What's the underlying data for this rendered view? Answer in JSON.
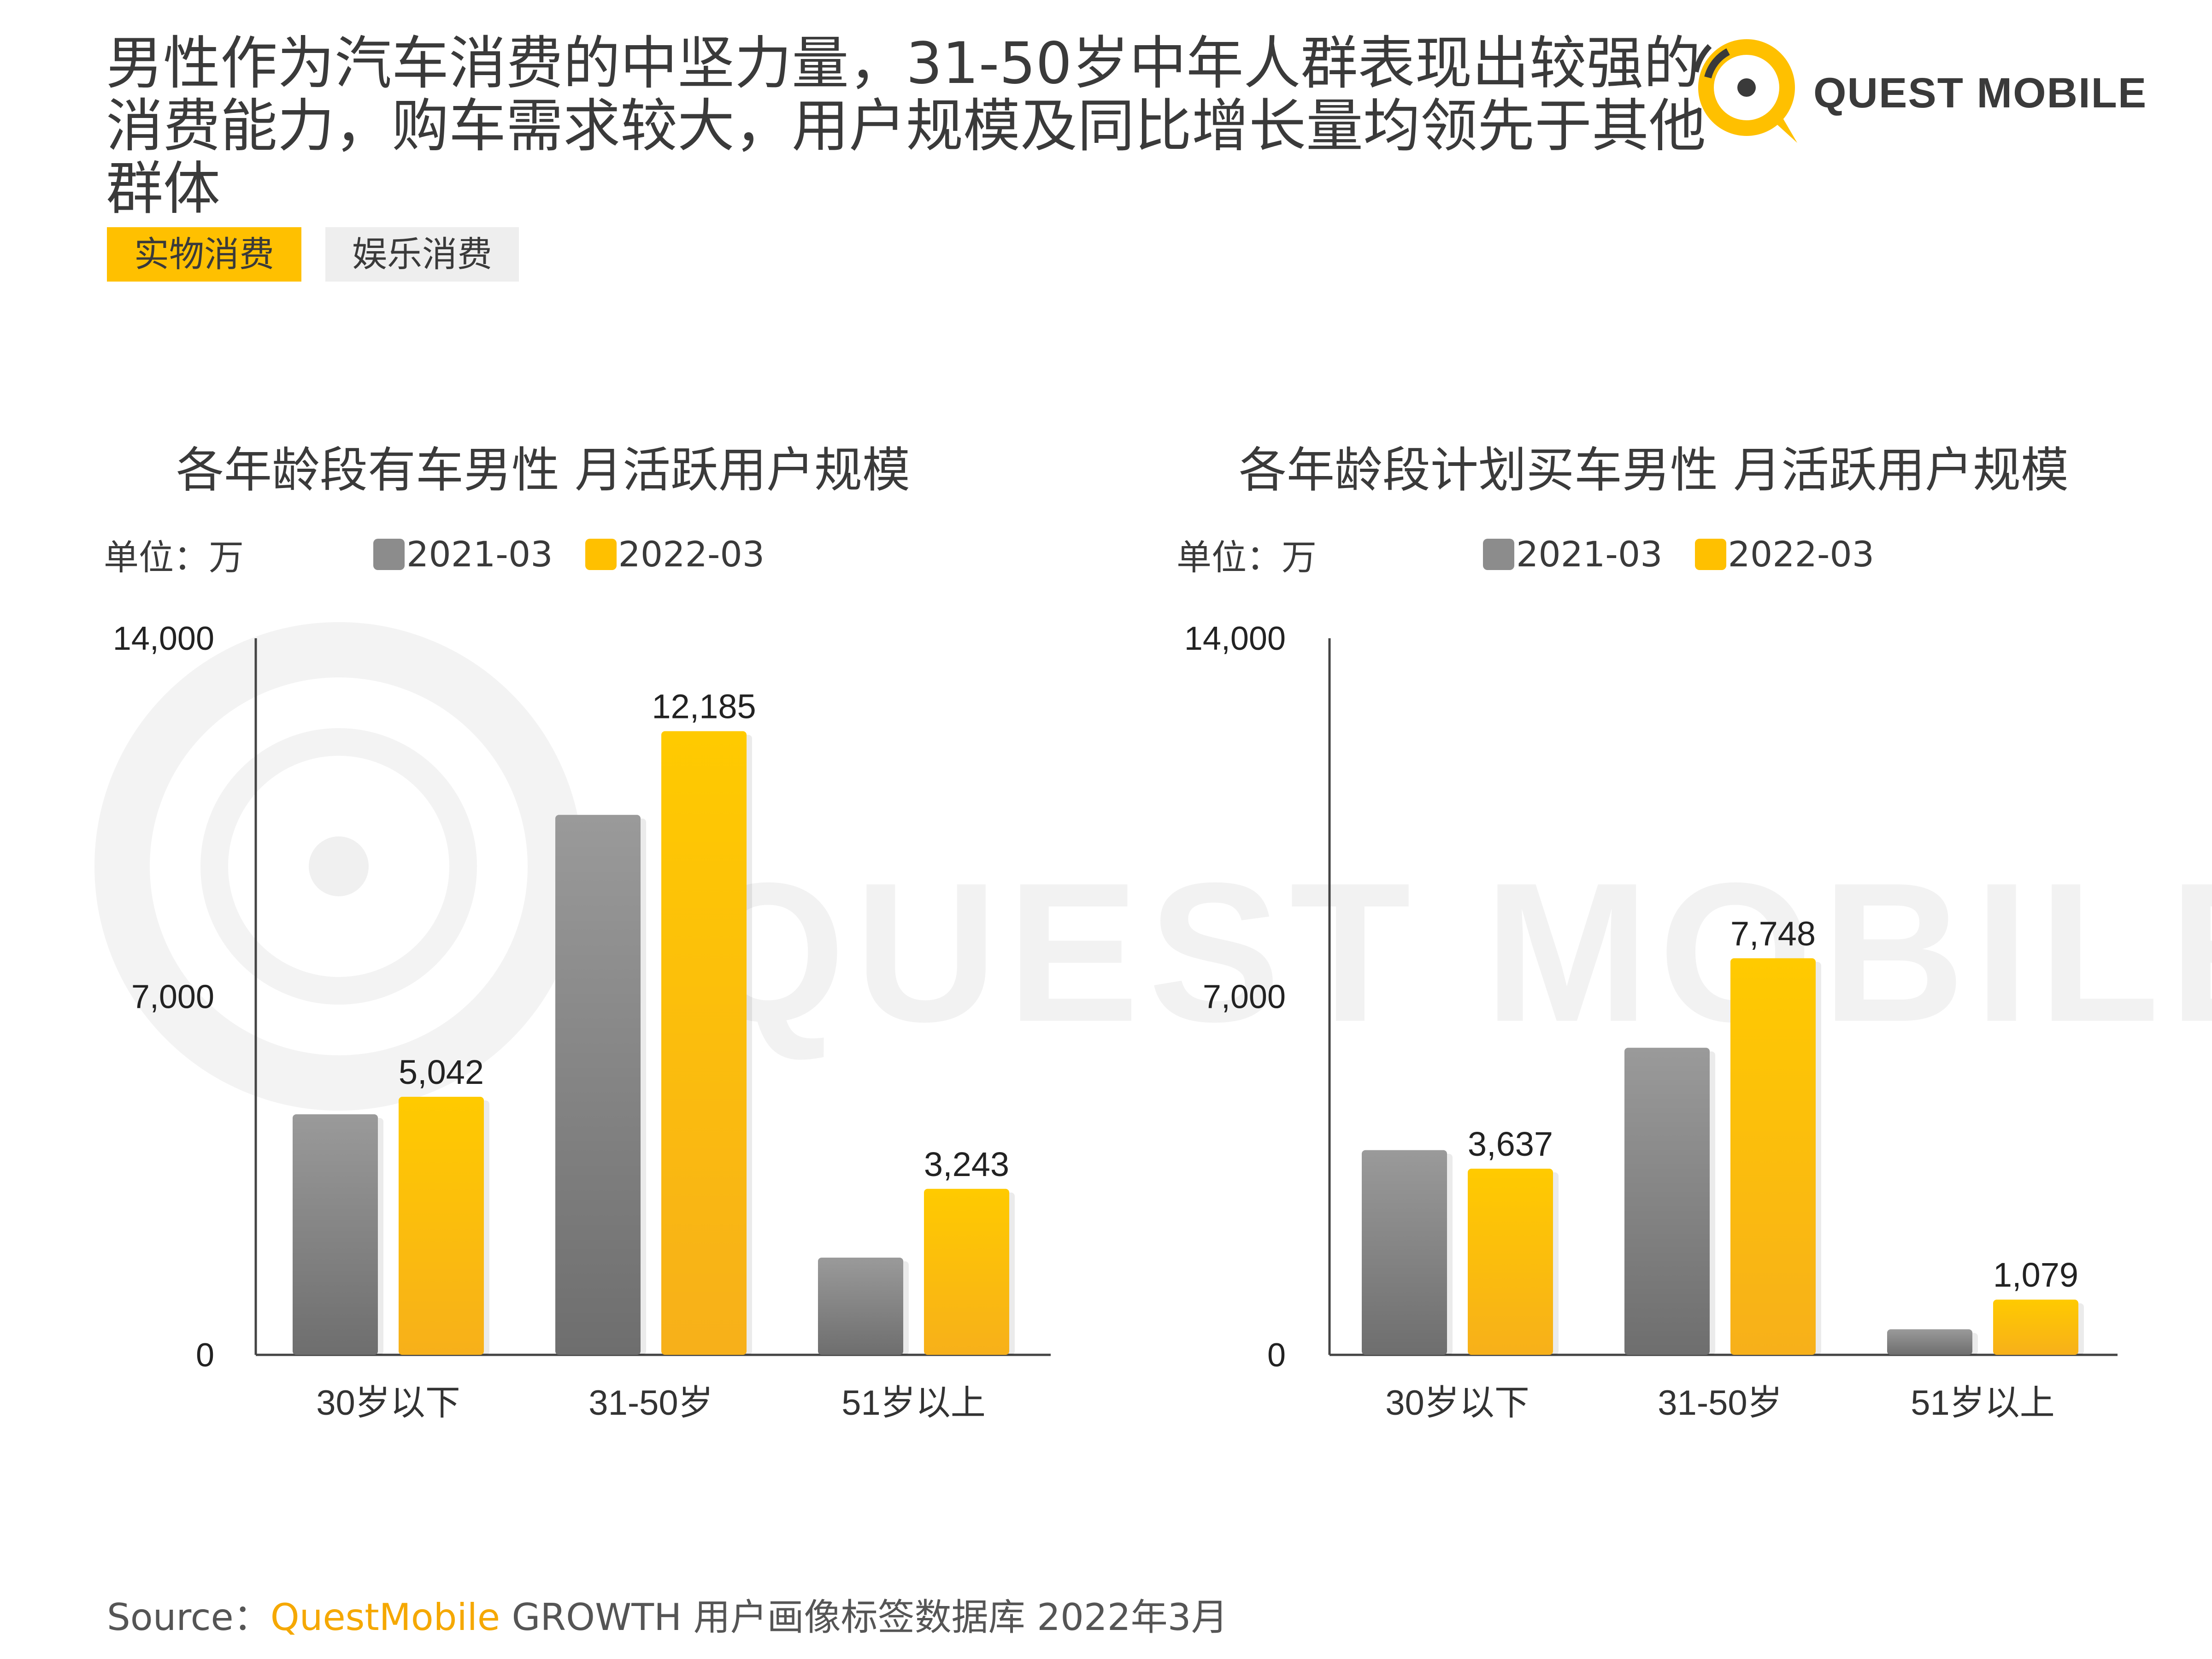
{
  "headline": "男性作为汽车消费的中坚力量，31-50岁中年人群表现出较强的消费能力，购车需求较大，用户规模及同比增长量均领先于其他群体",
  "logo": {
    "text": "QUEST MOBILE",
    "icon": "quest-mobile-logo-icon"
  },
  "tags": [
    {
      "label": "实物消费",
      "active": true
    },
    {
      "label": "娱乐消费",
      "active": false
    }
  ],
  "watermark": "QUEST MOBILE",
  "colors": {
    "accent": "#ffc000",
    "grey": "#8c8c8c",
    "tag_inactive": "#eeeeee"
  },
  "footer": {
    "prefix": "Source：",
    "brand": "QuestMobile",
    "rest": " GROWTH 用户画像标签数据库 2022年3月"
  },
  "chart_data": [
    {
      "type": "bar",
      "title": "各年龄段有车男性 月活跃用户规模",
      "unit": "单位：万",
      "categories": [
        "30岁以下",
        "31-50岁",
        "51岁以上"
      ],
      "series": [
        {
          "name": "2021-03",
          "values": [
            4700,
            10550,
            1900
          ],
          "color": "#8c8c8c",
          "show_labels": false
        },
        {
          "name": "2022-03",
          "values": [
            5042,
            12185,
            3243
          ],
          "color": "#ffc000",
          "show_labels": true,
          "labels": [
            "5,042",
            "12,185",
            "3,243"
          ]
        }
      ],
      "ylim": [
        0,
        14000
      ],
      "yticks": [
        "0",
        "7,000",
        "14,000"
      ],
      "legend": "top"
    },
    {
      "type": "bar",
      "title": "各年龄段计划买车男性 月活跃用户规模",
      "unit": "单位：万",
      "categories": [
        "30岁以下",
        "31-50岁",
        "51岁以上"
      ],
      "series": [
        {
          "name": "2021-03",
          "values": [
            4000,
            6000,
            500
          ],
          "color": "#8c8c8c",
          "show_labels": false
        },
        {
          "name": "2022-03",
          "values": [
            3637,
            7748,
            1079
          ],
          "color": "#ffc000",
          "show_labels": true,
          "labels": [
            "3,637",
            "7,748",
            "1,079"
          ]
        }
      ],
      "ylim": [
        0,
        14000
      ],
      "yticks": [
        "0",
        "7,000",
        "14,000"
      ],
      "legend": "top"
    }
  ]
}
